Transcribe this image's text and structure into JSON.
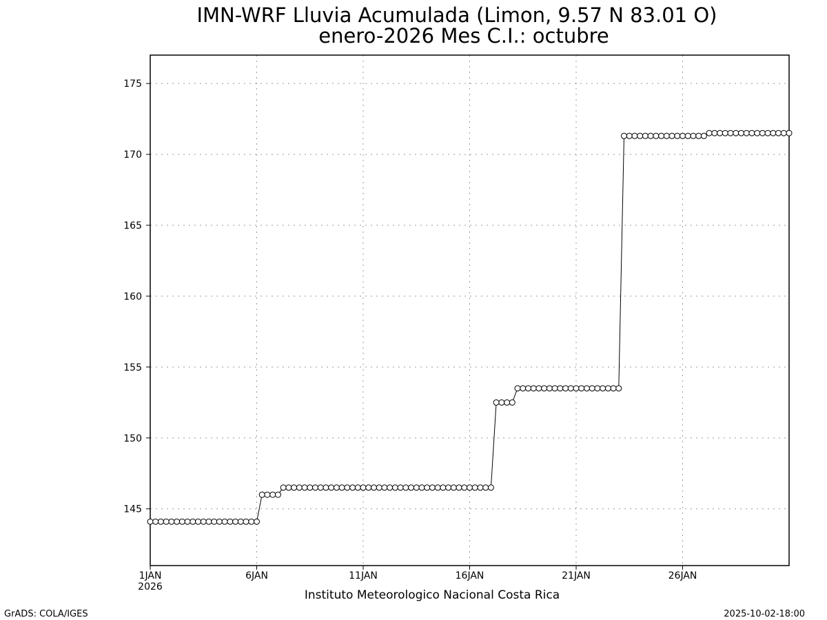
{
  "chart_data": {
    "type": "line",
    "title": "IMN-WRF  Lluvia Acumulada  (Limon, 9.57  N 83.01  O)",
    "subtitle": "enero-2026 Mes C.I.: octubre",
    "xlabel": "Instituto Meteorologico Nacional Costa Rica",
    "ylabel": "",
    "x_ticks": [
      {
        "day": 1,
        "label": "1JAN",
        "sublabel": "2026"
      },
      {
        "day": 6,
        "label": "6JAN",
        "sublabel": ""
      },
      {
        "day": 11,
        "label": "11JAN",
        "sublabel": ""
      },
      {
        "day": 16,
        "label": "16JAN",
        "sublabel": ""
      },
      {
        "day": 21,
        "label": "21JAN",
        "sublabel": ""
      },
      {
        "day": 26,
        "label": "26JAN",
        "sublabel": ""
      }
    ],
    "y_ticks": [
      145,
      150,
      155,
      160,
      165,
      170,
      175
    ],
    "xlim": [
      1,
      31
    ],
    "ylim": [
      141,
      177
    ],
    "grid": true,
    "marker": "open-circle",
    "line_color": "#000000",
    "series": [
      {
        "name": "",
        "steps": [
          {
            "from_day": 1.0,
            "to_day": 6.0,
            "value": 144.1
          },
          {
            "from_day": 6.25,
            "to_day": 7.0,
            "value": 146.0
          },
          {
            "from_day": 7.25,
            "to_day": 17.0,
            "value": 146.5
          },
          {
            "from_day": 17.25,
            "to_day": 18.0,
            "value": 152.5
          },
          {
            "from_day": 18.25,
            "to_day": 23.0,
            "value": 153.5
          },
          {
            "from_day": 23.25,
            "to_day": 27.0,
            "value": 171.3
          },
          {
            "from_day": 27.25,
            "to_day": 31.0,
            "value": 171.5
          }
        ],
        "step_days": 0.25
      }
    ]
  },
  "footer": {
    "left": "GrADS: COLA/IGES",
    "right": "2025-10-02-18:00"
  }
}
